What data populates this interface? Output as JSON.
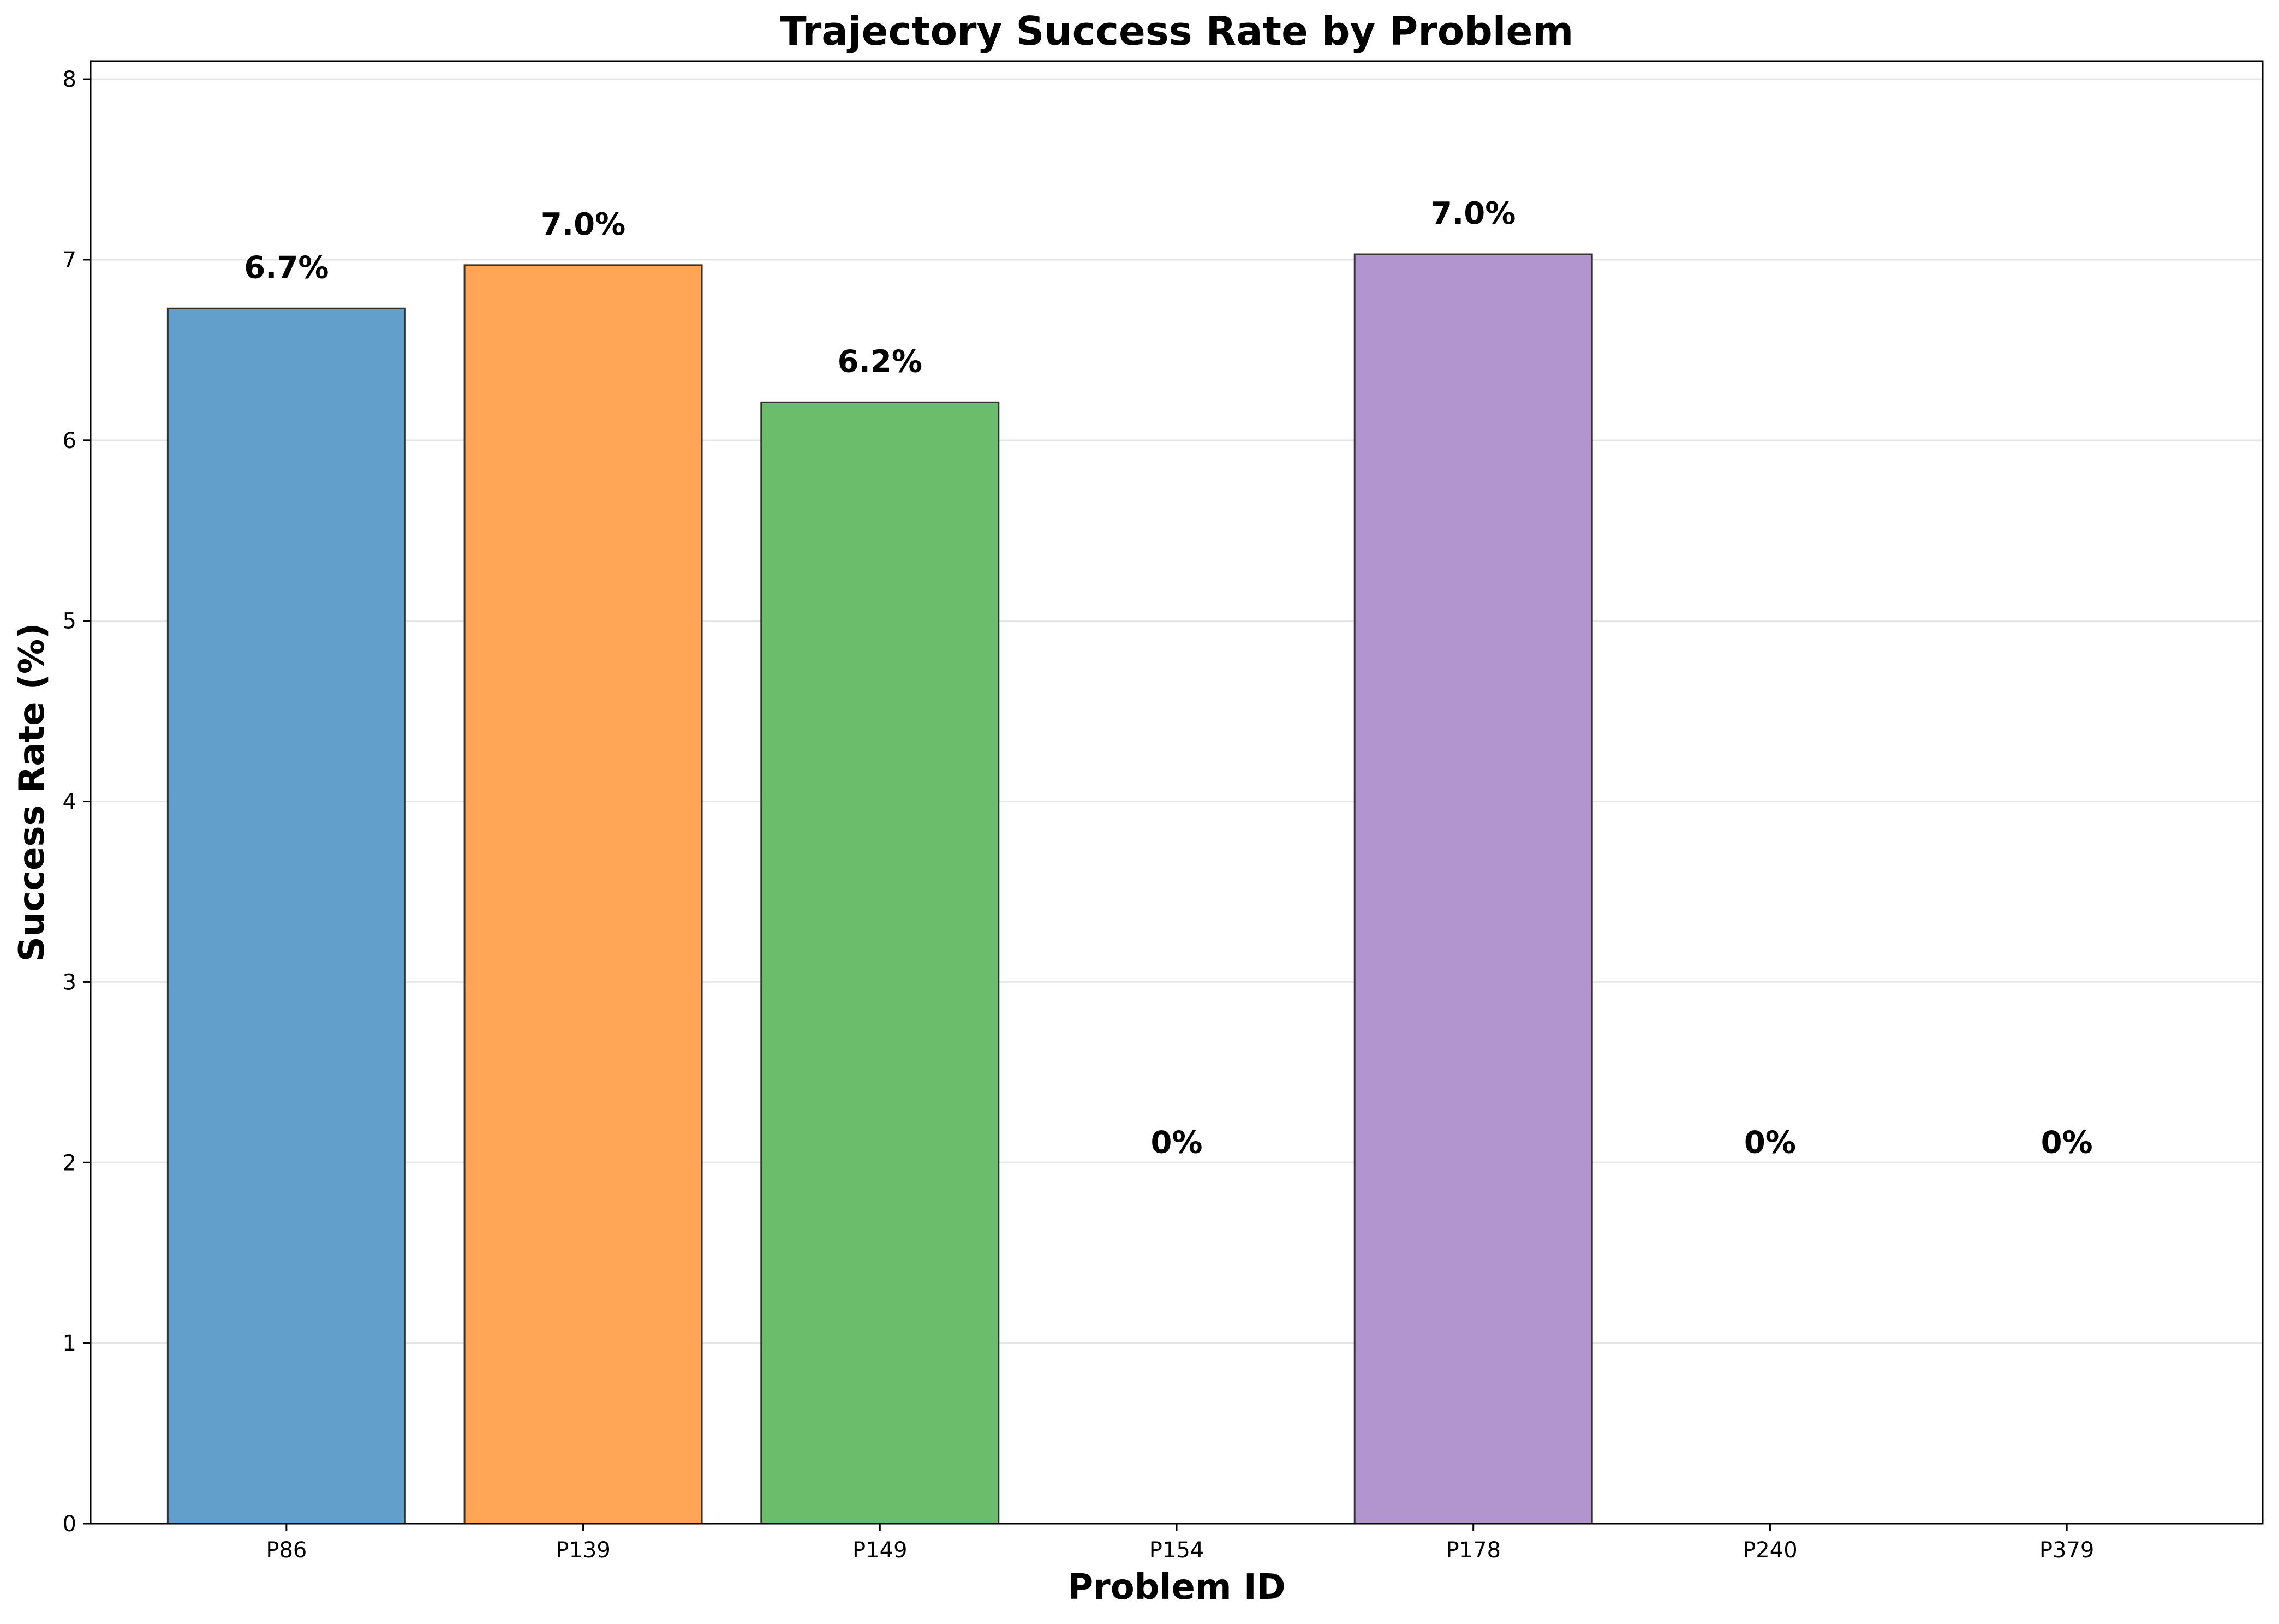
{
  "chart_data": {
    "type": "bar",
    "title": "Trajectory Success Rate by Problem",
    "xlabel": "Problem ID",
    "ylabel": "Success Rate (%)",
    "categories": [
      "P86",
      "P139",
      "P149",
      "P154",
      "P178",
      "P240",
      "P379"
    ],
    "values": [
      6.73,
      6.97,
      6.21,
      0,
      7.03,
      0,
      0
    ],
    "data_labels": [
      "6.7%",
      "7.0%",
      "6.2%",
      "0%",
      "7.0%",
      "0%",
      "0%"
    ],
    "bar_colors": [
      "#629fca",
      "#ffa556",
      "#6bbc6b",
      "#e77b7b",
      "#b294cf",
      "#a88a84",
      "#eaa2d4"
    ],
    "bar_edge_color": "#333333",
    "ylim": [
      0,
      8.1
    ],
    "yticks": [
      0,
      1,
      2,
      3,
      4,
      5,
      6,
      7,
      8
    ],
    "ytick_labels": [
      "0",
      "1",
      "2",
      "3",
      "4",
      "5",
      "6",
      "7",
      "8"
    ],
    "grid": "horizontal",
    "grid_color": "#e6e6e6",
    "legend": "none"
  }
}
